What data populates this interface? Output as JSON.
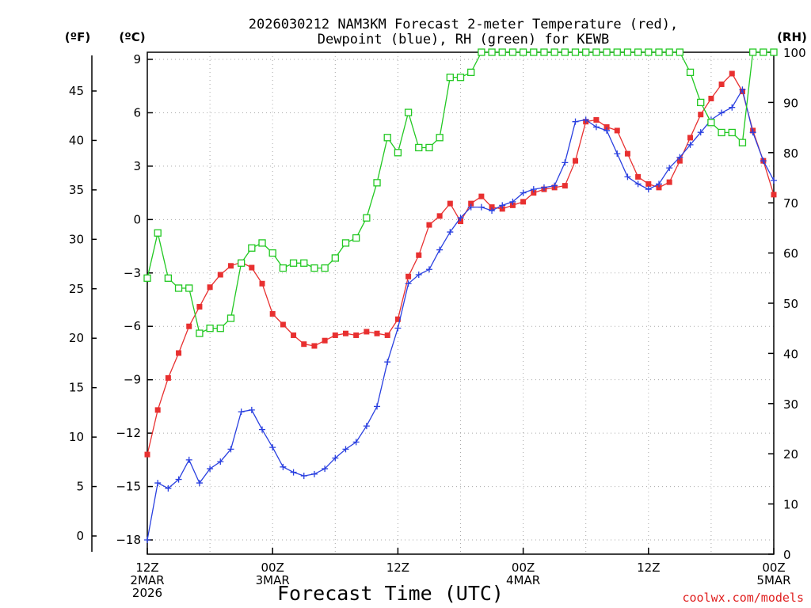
{
  "title_lines": [
    "2026030212 NAM3KM Forecast 2-meter Temperature (red),",
    "Dewpoint (blue), RH (green) for KEWB"
  ],
  "credit": "coolwx.com/models",
  "colors": {
    "temperature": "#e83030",
    "dewpoint": "#2a40e0",
    "rh": "#22c822",
    "grid": "#aaaaaa"
  },
  "chart_data": {
    "type": "line",
    "xlabel": "Forecast Time (UTC)",
    "x": [
      0,
      1,
      2,
      3,
      4,
      5,
      6,
      7,
      8,
      9,
      10,
      11,
      12,
      13,
      14,
      15,
      16,
      17,
      18,
      19,
      20,
      21,
      22,
      23,
      24,
      25,
      26,
      27,
      28,
      29,
      30,
      31,
      32,
      33,
      34,
      35,
      36,
      37,
      38,
      39,
      40,
      41,
      42,
      43,
      44,
      45,
      46,
      47,
      48,
      49,
      50,
      51,
      52,
      53,
      54,
      55,
      56,
      57,
      58,
      59,
      60
    ],
    "x_unit": "forecast hour from 2026-03-02 12Z",
    "xlim": [
      0,
      60
    ],
    "x_ticks": [
      {
        "x": 0,
        "lines": [
          "12Z",
          "2MAR",
          "2026"
        ]
      },
      {
        "x": 12,
        "lines": [
          "00Z",
          "3MAR"
        ]
      },
      {
        "x": 24,
        "lines": [
          "12Z"
        ]
      },
      {
        "x": 36,
        "lines": [
          "00Z",
          "4MAR"
        ]
      },
      {
        "x": 48,
        "lines": [
          "12Z"
        ]
      },
      {
        "x": 60,
        "lines": [
          "00Z",
          "5MAR"
        ]
      }
    ],
    "axes": {
      "celsius": {
        "label": "(ºC)",
        "range": [
          -18.8,
          9.4
        ],
        "ticks": [
          9,
          6,
          3,
          0,
          -3,
          -6,
          -9,
          -12,
          -15,
          -18
        ]
      },
      "fahrenheit": {
        "label": "(ºF)",
        "ticks": [
          45,
          40,
          35,
          30,
          25,
          20,
          15,
          10,
          5,
          0
        ]
      },
      "rh": {
        "label": "(RH)",
        "range": [
          0,
          100
        ],
        "ticks": [
          100,
          90,
          80,
          70,
          60,
          50,
          40,
          30,
          20,
          10,
          0
        ]
      }
    },
    "grid": true,
    "series": [
      {
        "key": "temperature",
        "axis": "celsius",
        "marker": "square-filled",
        "values": [
          -13.2,
          -10.7,
          -8.9,
          -7.5,
          -6.0,
          -4.9,
          -3.8,
          -3.1,
          -2.6,
          -2.4,
          -2.7,
          -3.6,
          -5.3,
          -5.9,
          -6.5,
          -7.0,
          -7.1,
          -6.8,
          -6.5,
          -6.4,
          -6.5,
          -6.3,
          -6.4,
          -6.5,
          -5.6,
          -3.2,
          -2.0,
          -0.3,
          0.2,
          0.9,
          -0.1,
          0.9,
          1.3,
          0.7,
          0.6,
          0.8,
          1.0,
          1.5,
          1.7,
          1.8,
          1.9,
          3.3,
          5.5,
          5.6,
          5.2,
          5.0,
          3.7,
          2.4,
          2.0,
          1.8,
          2.1,
          3.3,
          4.6,
          5.9,
          6.8,
          7.6,
          8.2,
          7.2,
          5.0,
          3.3,
          1.4
        ]
      },
      {
        "key": "dewpoint",
        "axis": "celsius",
        "marker": "plus",
        "values": [
          -18.0,
          -14.8,
          -15.1,
          -14.6,
          -13.5,
          -14.8,
          -14.0,
          -13.6,
          -12.9,
          -10.8,
          -10.7,
          -11.8,
          -12.8,
          -13.9,
          -14.2,
          -14.4,
          -14.3,
          -14.0,
          -13.4,
          -12.9,
          -12.5,
          -11.6,
          -10.5,
          -8.0,
          -6.1,
          -3.6,
          -3.1,
          -2.8,
          -1.7,
          -0.7,
          0.1,
          0.7,
          0.7,
          0.5,
          0.8,
          1.0,
          1.5,
          1.7,
          1.8,
          1.9,
          3.2,
          5.5,
          5.6,
          5.2,
          5.0,
          3.7,
          2.4,
          2.0,
          1.7,
          2.0,
          2.9,
          3.5,
          4.2,
          4.9,
          5.6,
          6.0,
          6.3,
          7.3,
          4.9,
          3.3,
          2.2
        ]
      },
      {
        "key": "rh",
        "axis": "rh",
        "marker": "square-open",
        "values": [
          55,
          64,
          55,
          53,
          53,
          44,
          45,
          45,
          47,
          58,
          61,
          62,
          60,
          57,
          58,
          58,
          57,
          57,
          59,
          62,
          63,
          67,
          74,
          83,
          80,
          88,
          81,
          81,
          83,
          95,
          95,
          96,
          100,
          100,
          100,
          100,
          100,
          100,
          100,
          100,
          100,
          100,
          100,
          100,
          100,
          100,
          100,
          100,
          100,
          100,
          100,
          100,
          96,
          90,
          86,
          84,
          84,
          82,
          100,
          100,
          100
        ]
      }
    ]
  }
}
